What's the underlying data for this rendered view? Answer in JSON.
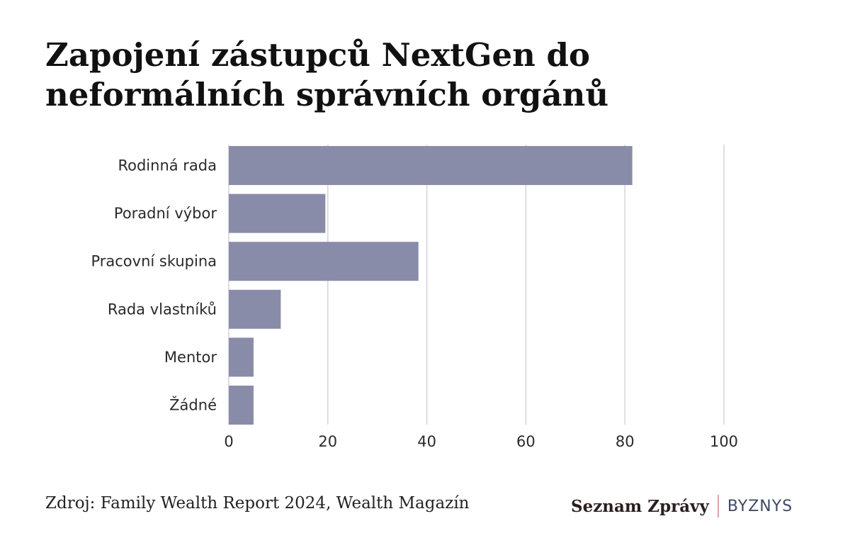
{
  "title": "Zapojení zástupců NextGen do neformálních správních orgánů",
  "source": "Zdroj: Family Wealth Report 2024, Wealth Magazín",
  "brand": {
    "name": "Seznam Zprávy",
    "section": "BYZNYS",
    "separator_color": "#e2a3a3"
  },
  "colors": {
    "bar": "#898ca9",
    "grid": "#d3d3de"
  },
  "chart_data": {
    "type": "bar",
    "orientation": "horizontal",
    "categories": [
      "Rodinná rada",
      "Poradní výbor",
      "Pracovní skupina",
      "Rada vlastníků",
      "Mentor",
      "Žádné"
    ],
    "values": [
      81.5,
      19.5,
      38.3,
      10.5,
      5,
      5
    ],
    "xlim": [
      0,
      100
    ],
    "xticks": [
      0,
      20,
      40,
      60,
      80,
      100
    ],
    "grid": true,
    "legend": "none"
  }
}
